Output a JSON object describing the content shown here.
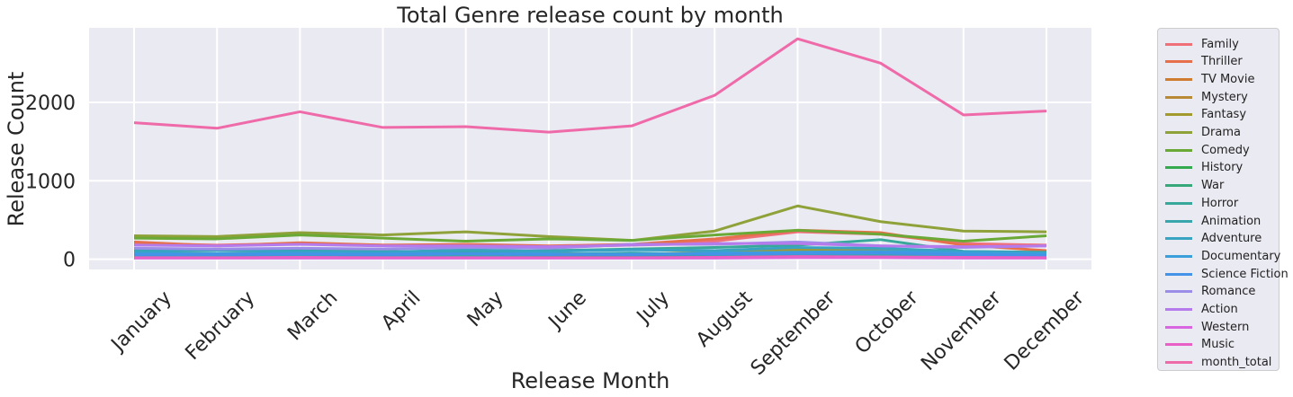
{
  "chart_data": {
    "type": "line",
    "title": "Total Genre release count by month",
    "xlabel": "Release Month",
    "ylabel": "Release Count",
    "categories": [
      "January",
      "February",
      "March",
      "April",
      "May",
      "June",
      "July",
      "August",
      "September",
      "October",
      "November",
      "December"
    ],
    "yticks": [
      0,
      1000,
      2000
    ],
    "ylim": [
      -130,
      2950
    ],
    "grid": true,
    "legend_placement": "outside-right",
    "series": [
      {
        "name": "Family",
        "color": "#f0707a",
        "values": [
          200,
          180,
          200,
          180,
          175,
          160,
          180,
          230,
          350,
          320,
          200,
          180
        ]
      },
      {
        "name": "Thriller",
        "color": "#e6704c",
        "values": [
          220,
          170,
          210,
          180,
          190,
          170,
          190,
          260,
          370,
          340,
          180,
          110
        ]
      },
      {
        "name": "TV Movie",
        "color": "#d07c30",
        "values": [
          30,
          30,
          30,
          30,
          30,
          30,
          30,
          30,
          40,
          40,
          40,
          40
        ]
      },
      {
        "name": "Mystery",
        "color": "#b98a36",
        "values": [
          50,
          45,
          55,
          45,
          50,
          45,
          45,
          60,
          80,
          80,
          50,
          40
        ]
      },
      {
        "name": "Fantasy",
        "color": "#a39a2e",
        "values": [
          80,
          70,
          80,
          70,
          90,
          75,
          60,
          90,
          120,
          110,
          80,
          70
        ]
      },
      {
        "name": "Drama",
        "color": "#8fa139",
        "values": [
          300,
          290,
          340,
          310,
          350,
          290,
          240,
          360,
          680,
          480,
          360,
          350
        ]
      },
      {
        "name": "Comedy",
        "color": "#6aa935",
        "values": [
          270,
          260,
          310,
          270,
          230,
          260,
          240,
          310,
          370,
          320,
          230,
          300
        ]
      },
      {
        "name": "History",
        "color": "#35a94d",
        "values": [
          40,
          35,
          45,
          40,
          40,
          35,
          30,
          45,
          70,
          60,
          40,
          30
        ]
      },
      {
        "name": "War",
        "color": "#36a87a",
        "values": [
          35,
          30,
          35,
          30,
          30,
          30,
          25,
          35,
          50,
          45,
          30,
          25
        ]
      },
      {
        "name": "Horror",
        "color": "#37a89a",
        "values": [
          110,
          120,
          110,
          100,
          90,
          110,
          130,
          150,
          180,
          250,
          100,
          90
        ]
      },
      {
        "name": "Animation",
        "color": "#39a6ae",
        "values": [
          50,
          50,
          50,
          45,
          50,
          60,
          80,
          60,
          70,
          60,
          50,
          50
        ]
      },
      {
        "name": "Adventure",
        "color": "#38a4c2",
        "values": [
          100,
          110,
          100,
          90,
          120,
          100,
          120,
          110,
          150,
          140,
          100,
          80
        ]
      },
      {
        "name": "Documentary",
        "color": "#3a9fdb",
        "values": [
          70,
          70,
          75,
          70,
          75,
          70,
          60,
          80,
          90,
          100,
          80,
          70
        ]
      },
      {
        "name": "Science Fiction",
        "color": "#4393e8",
        "values": [
          60,
          60,
          65,
          60,
          70,
          60,
          60,
          65,
          75,
          80,
          60,
          50
        ]
      },
      {
        "name": "Romance",
        "color": "#9c8ee8",
        "values": [
          140,
          130,
          140,
          130,
          150,
          140,
          190,
          190,
          220,
          170,
          150,
          170
        ]
      },
      {
        "name": "Action",
        "color": "#b57bec",
        "values": [
          180,
          170,
          190,
          170,
          170,
          160,
          180,
          200,
          200,
          170,
          160,
          170
        ]
      },
      {
        "name": "Western",
        "color": "#d766e0",
        "values": [
          15,
          15,
          15,
          15,
          15,
          15,
          15,
          15,
          20,
          20,
          15,
          15
        ]
      },
      {
        "name": "Music",
        "color": "#e85fc6",
        "values": [
          20,
          20,
          25,
          20,
          20,
          20,
          20,
          25,
          35,
          30,
          25,
          20
        ]
      },
      {
        "name": "month_total",
        "color": "#ef6aa9",
        "values": [
          1740,
          1670,
          1880,
          1680,
          1690,
          1620,
          1700,
          2090,
          2810,
          2500,
          1840,
          1890
        ]
      }
    ]
  }
}
